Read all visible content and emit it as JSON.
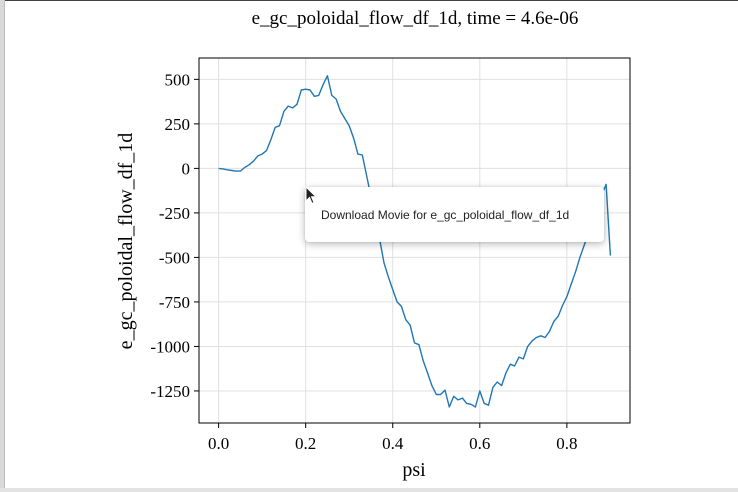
{
  "chart_data": {
    "type": "line",
    "title": "e_gc_poloidal_flow_df_1d,  time = 4.6e-06",
    "xlabel": "psi",
    "ylabel": "e_gc_poloidal_flow_df_1d",
    "xlim": [
      -0.045,
      0.945
    ],
    "ylim": [
      -1430,
      620
    ],
    "xticks": [
      0.0,
      0.2,
      0.4,
      0.6,
      0.8
    ],
    "xtick_labels": [
      "0.0",
      "0.2",
      "0.4",
      "0.6",
      "0.8"
    ],
    "yticks": [
      500,
      250,
      0,
      -250,
      -500,
      -750,
      -1000,
      -1250
    ],
    "ytick_labels": [
      "500",
      "250",
      "0",
      "-250",
      "-500",
      "-750",
      "-1000",
      "-1250"
    ],
    "grid": true,
    "series": [
      {
        "color": "#1f77b4",
        "x": [
          0.0,
          0.01,
          0.02,
          0.03,
          0.04,
          0.05,
          0.06,
          0.07,
          0.08,
          0.09,
          0.1,
          0.11,
          0.12,
          0.13,
          0.14,
          0.15,
          0.16,
          0.17,
          0.18,
          0.19,
          0.2,
          0.21,
          0.22,
          0.23,
          0.24,
          0.25,
          0.26,
          0.27,
          0.28,
          0.29,
          0.3,
          0.31,
          0.32,
          0.33,
          0.34,
          0.35,
          0.36,
          0.37,
          0.38,
          0.39,
          0.4,
          0.41,
          0.42,
          0.43,
          0.44,
          0.45,
          0.46,
          0.47,
          0.48,
          0.49,
          0.5,
          0.51,
          0.52,
          0.53,
          0.54,
          0.55,
          0.56,
          0.57,
          0.58,
          0.59,
          0.6,
          0.61,
          0.62,
          0.63,
          0.64,
          0.65,
          0.66,
          0.67,
          0.68,
          0.69,
          0.7,
          0.71,
          0.72,
          0.73,
          0.74,
          0.75,
          0.76,
          0.77,
          0.78,
          0.79,
          0.8,
          0.81,
          0.82,
          0.83,
          0.84,
          0.85,
          0.86,
          0.87,
          0.88,
          0.89,
          0.9
        ],
        "y": [
          0,
          -3,
          -8,
          -12,
          -15,
          -15,
          5,
          20,
          40,
          70,
          80,
          100,
          160,
          230,
          240,
          320,
          350,
          340,
          360,
          440,
          445,
          440,
          405,
          410,
          470,
          520,
          410,
          390,
          320,
          280,
          240,
          170,
          80,
          75,
          -40,
          -160,
          -280,
          -400,
          -530,
          -610,
          -680,
          -750,
          -775,
          -850,
          -880,
          -980,
          -990,
          -1080,
          -1150,
          -1220,
          -1270,
          -1270,
          -1245,
          -1340,
          -1280,
          -1300,
          -1290,
          -1320,
          -1325,
          -1340,
          -1250,
          -1320,
          -1330,
          -1230,
          -1200,
          -1220,
          -1150,
          -1100,
          -1110,
          -1060,
          -1070,
          -1000,
          -970,
          -950,
          -940,
          -950,
          -915,
          -860,
          -830,
          -770,
          -720,
          -650,
          -580,
          -500,
          -430,
          -360,
          -290,
          -220,
          -150,
          -90,
          -490
        ]
      }
    ]
  },
  "tooltip": {
    "text": "Download Movie for e_gc_poloidal_flow_df_1d"
  }
}
